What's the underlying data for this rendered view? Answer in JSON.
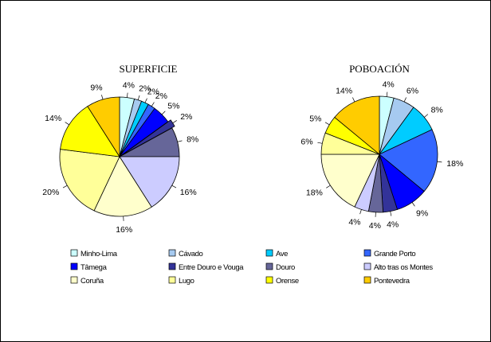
{
  "chart_data": [
    {
      "type": "pie",
      "title": "SUPERFICIE",
      "slices": [
        {
          "category": "Miño-Lima",
          "value": 4,
          "label": "4%"
        },
        {
          "category": "Cávado",
          "value": 2,
          "label": "2%"
        },
        {
          "category": "Ave",
          "value": 2,
          "label": "2%"
        },
        {
          "category": "Grande Porto",
          "value": 2,
          "label": "2%"
        },
        {
          "category": "Tâmega",
          "value": 5,
          "label": "5%"
        },
        {
          "category": "Entre Douro e Vouga",
          "value": 2,
          "label": "2%"
        },
        {
          "category": "Douro",
          "value": 8,
          "label": "8%"
        },
        {
          "category": "Alto tras os Montes",
          "value": 16,
          "label": "16%"
        },
        {
          "category": "Coruña",
          "value": 16,
          "label": "16%"
        },
        {
          "category": "Lugo",
          "value": 20,
          "label": "20%"
        },
        {
          "category": "Orense",
          "value": 14,
          "label": "14%"
        },
        {
          "category": "Pontevedra",
          "value": 9,
          "label": "9%"
        }
      ]
    },
    {
      "type": "pie",
      "title": "POBOACIÓN",
      "slices": [
        {
          "category": "Miño-Lima",
          "value": 4,
          "label": "4%"
        },
        {
          "category": "Cávado",
          "value": 6,
          "label": "6%"
        },
        {
          "category": "Ave",
          "value": 8,
          "label": "8%"
        },
        {
          "category": "Grande Porto",
          "value": 18,
          "label": "18%"
        },
        {
          "category": "Tâmega",
          "value": 9,
          "label": "9%"
        },
        {
          "category": "Entre Douro e Vouga",
          "value": 4,
          "label": "4%"
        },
        {
          "category": "Douro",
          "value": 4,
          "label": "4%"
        },
        {
          "category": "Alto tras os Montes",
          "value": 4,
          "label": "4%"
        },
        {
          "category": "Coruña",
          "value": 18,
          "label": "18%"
        },
        {
          "category": "Lugo",
          "value": 6,
          "label": "6%"
        },
        {
          "category": "Orense",
          "value": 5,
          "label": "5%"
        },
        {
          "category": "Pontevedra",
          "value": 14,
          "label": "14%"
        }
      ]
    }
  ],
  "legend": {
    "placement": "bottom",
    "items": [
      {
        "label": "Minho-Lima",
        "color": "#ccffff"
      },
      {
        "label": "Cávado",
        "color": "#a6caf0"
      },
      {
        "label": "Ave",
        "color": "#00ccff"
      },
      {
        "label": "Grande Porto",
        "color": "#3366ff"
      },
      {
        "label": "Tâmega",
        "color": "#0000ff"
      },
      {
        "label": "Entre Douro e Vouga",
        "color": "#333399"
      },
      {
        "label": "Douro",
        "color": "#666699"
      },
      {
        "label": "Alto tras os Montes",
        "color": "#ccccff"
      },
      {
        "label": "Coruña",
        "color": "#ffffcc"
      },
      {
        "label": "Lugo",
        "color": "#ffff99"
      },
      {
        "label": "Orense",
        "color": "#ffff00"
      },
      {
        "label": "Pontevedra",
        "color": "#ffcc00"
      }
    ]
  }
}
